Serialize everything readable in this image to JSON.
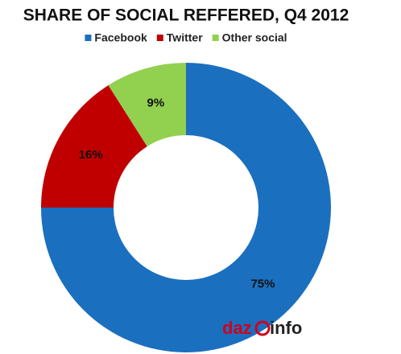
{
  "chart_data": {
    "type": "donut",
    "title": "SHARE OF SOCIAL REFFERED, Q4 2012",
    "categories": [
      "Facebook",
      "Twitter",
      "Other social"
    ],
    "values": [
      75,
      16,
      9
    ],
    "value_labels": [
      "75%",
      "16%",
      "9%"
    ],
    "colors": [
      "#1b6fbf",
      "#c00000",
      "#92d050"
    ],
    "legend": "top",
    "logo": {
      "left": "daz",
      "right": "info"
    }
  }
}
